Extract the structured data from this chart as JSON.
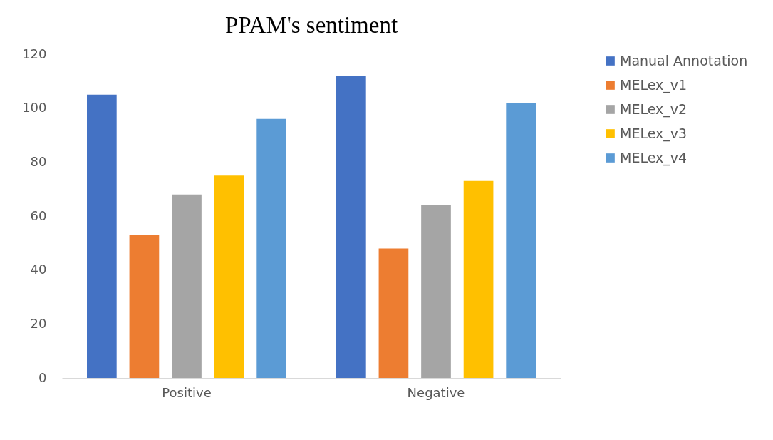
{
  "chart_data": {
    "type": "bar",
    "title": "PPAM's sentiment",
    "categories": [
      "Positive",
      "Negative"
    ],
    "series": [
      {
        "name": "Manual Annotation",
        "color": "#4472c4",
        "values": [
          105,
          112
        ]
      },
      {
        "name": "MELex_v1",
        "color": "#ed7d31",
        "values": [
          53,
          48
        ]
      },
      {
        "name": "MELex_v2",
        "color": "#a5a5a5",
        "values": [
          68,
          64
        ]
      },
      {
        "name": "MELex_v3",
        "color": "#ffc000",
        "values": [
          75,
          73
        ]
      },
      {
        "name": "MELex_v4",
        "color": "#5b9bd5",
        "values": [
          96,
          102
        ]
      }
    ],
    "ylim": [
      0,
      120
    ],
    "yticks": [
      0,
      20,
      40,
      60,
      80,
      100,
      120
    ],
    "grid": false,
    "legend": "right"
  }
}
